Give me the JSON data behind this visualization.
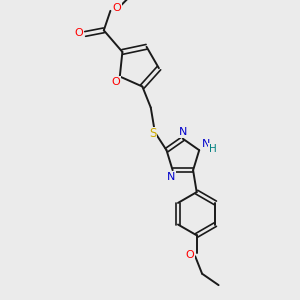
{
  "bg_color": "#ebebeb",
  "bond_color": "#1a1a1a",
  "O_color": "#ff0000",
  "N_color": "#0000cc",
  "S_color": "#ccaa00",
  "H_color": "#008080",
  "lw": 1.4,
  "dlw": 1.2,
  "fs": 8.0,
  "figsize": [
    3.0,
    3.0
  ],
  "dpi": 100,
  "xlim": [
    0,
    10
  ],
  "ylim": [
    0,
    10
  ]
}
